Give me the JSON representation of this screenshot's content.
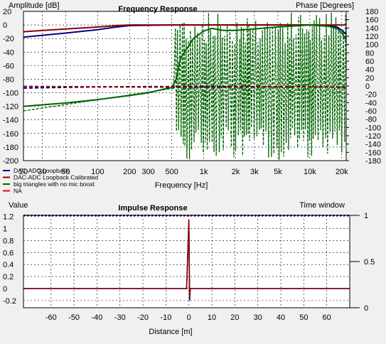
{
  "chart_data": [
    {
      "type": "line",
      "title": "Frequency Response",
      "xlabel": "Frequency [Hz]",
      "ylabel_left": "Amplitude [dB]",
      "ylabel_right": "Phase [Degrees]",
      "x_scale": "log",
      "xlim": [
        20,
        22000
      ],
      "ylim_left": [
        -200,
        20
      ],
      "ylim_right": [
        -180,
        180
      ],
      "x_ticks": [
        20,
        30,
        50,
        100,
        200,
        300,
        500,
        1000,
        2000,
        3000,
        5000,
        10000,
        20000
      ],
      "x_tick_labels": [
        "20",
        "30",
        "50",
        "100",
        "200",
        "300",
        "500",
        "1k",
        "2k",
        "3k",
        "5k",
        "10k",
        "20k"
      ],
      "y_left_ticks": [
        20,
        0,
        -20,
        -40,
        -60,
        -80,
        -100,
        -120,
        -140,
        -160,
        -180,
        -200
      ],
      "y_right_ticks": [
        180,
        160,
        140,
        120,
        100,
        80,
        60,
        40,
        20,
        0,
        -20,
        -40,
        -60,
        -80,
        -100,
        -120,
        -140,
        -160,
        -180
      ],
      "grid": true,
      "legend_position": "bottom-left",
      "series": [
        {
          "name": "DAC-ADC Loopback",
          "color": "#00008b",
          "axis": "left",
          "style": "solid",
          "x": [
            20,
            50,
            100,
            150,
            200,
            500,
            2000,
            10000,
            15000,
            18000,
            20000,
            22000
          ],
          "y": [
            -18,
            -12,
            -7,
            -3,
            -1,
            0,
            0,
            0,
            -1,
            -3,
            -8,
            -14
          ]
        },
        {
          "name": "DAC-ADC Loopback Calibrated",
          "color": "#8b0000",
          "axis": "left",
          "style": "solid",
          "x": [
            20,
            50,
            100,
            150,
            200,
            500,
            2000,
            10000,
            18000,
            20000,
            21000,
            22000
          ],
          "y": [
            -10,
            -6,
            -3,
            -1,
            0,
            0,
            0,
            0,
            0,
            0,
            0,
            0
          ]
        },
        {
          "name": "big triangles with no mic boost",
          "color": "#006400",
          "axis": "left",
          "style": "solid",
          "x": [
            20,
            50,
            100,
            200,
            300,
            500,
            550,
            600,
            800,
            1000,
            1200,
            1500,
            2000,
            5000,
            10000,
            15000,
            18000,
            20000,
            22000
          ],
          "y": [
            -120,
            -115,
            -110,
            -104,
            -100,
            -92,
            -80,
            -50,
            -20,
            -9,
            -5,
            -8,
            -8,
            -3,
            0,
            -2,
            -5,
            -12,
            -22
          ]
        },
        {
          "name": "DAC-ADC Loopback phase",
          "color": "#00008b",
          "axis": "right",
          "style": "dashed",
          "x": [
            20,
            100,
            1000,
            10000,
            22000
          ],
          "y": [
            -5,
            -2,
            -1,
            -2,
            -3
          ]
        },
        {
          "name": "DAC-ADC Loopback Calibrated phase",
          "color": "#8b0000",
          "axis": "right",
          "style": "dashed",
          "x": [
            20,
            100,
            1000,
            10000,
            22000
          ],
          "y": [
            -1,
            -2,
            -3,
            -2,
            -2
          ]
        },
        {
          "name": "big triangles with no mic boost phase",
          "color": "#006400",
          "axis": "right",
          "style": "dashed",
          "x": [],
          "y": [],
          "note_values": "noisy, wrapping between -180 and 180 degrees above about 550 Hz"
        }
      ],
      "legend": [
        {
          "label": "DAC-ADC Loopback",
          "color": "#00008b"
        },
        {
          "label": "DAC-ADC Loopback Calibrated",
          "color": "#8b0000"
        },
        {
          "label": "big triangles with no mic boost",
          "color": "#006400"
        },
        {
          "label": "NA",
          "color": "#ff0000"
        }
      ]
    },
    {
      "type": "line",
      "title": "Impulse Response",
      "xlabel": "Distance [m]",
      "ylabel_left": "Value",
      "ylabel_right": "Time window",
      "xlim": [
        -72,
        70
      ],
      "ylim_left": [
        -0.32,
        1.22
      ],
      "ylim_right": [
        0,
        1
      ],
      "x_ticks": [
        -60,
        -50,
        -40,
        -30,
        -20,
        -10,
        0,
        10,
        20,
        30,
        40,
        50,
        60
      ],
      "y_left_ticks": [
        1.2,
        1,
        0.8,
        0.6,
        0.4,
        0.2,
        0,
        -0.2
      ],
      "y_right_ticks": [
        1,
        0.5,
        0
      ],
      "grid": true,
      "series": [
        {
          "name": "DAC-ADC Loopback",
          "color": "#00008b",
          "axis": "left",
          "x": [
            -72,
            -1,
            0,
            0.3,
            0.6,
            70
          ],
          "y": [
            0,
            0,
            1.1,
            -0.2,
            0,
            0
          ]
        },
        {
          "name": "DAC-ADC Loopback Calibrated",
          "color": "#8b0000",
          "axis": "left",
          "x": [
            -72,
            -1,
            0,
            0.3,
            0.6,
            70
          ],
          "y": [
            0,
            0,
            1.15,
            -0.15,
            0,
            0
          ]
        },
        {
          "name": "Time window",
          "color": "#00008b",
          "axis": "right",
          "style": "dashed",
          "x": [
            -72,
            70
          ],
          "y": [
            1,
            1
          ]
        }
      ]
    }
  ]
}
